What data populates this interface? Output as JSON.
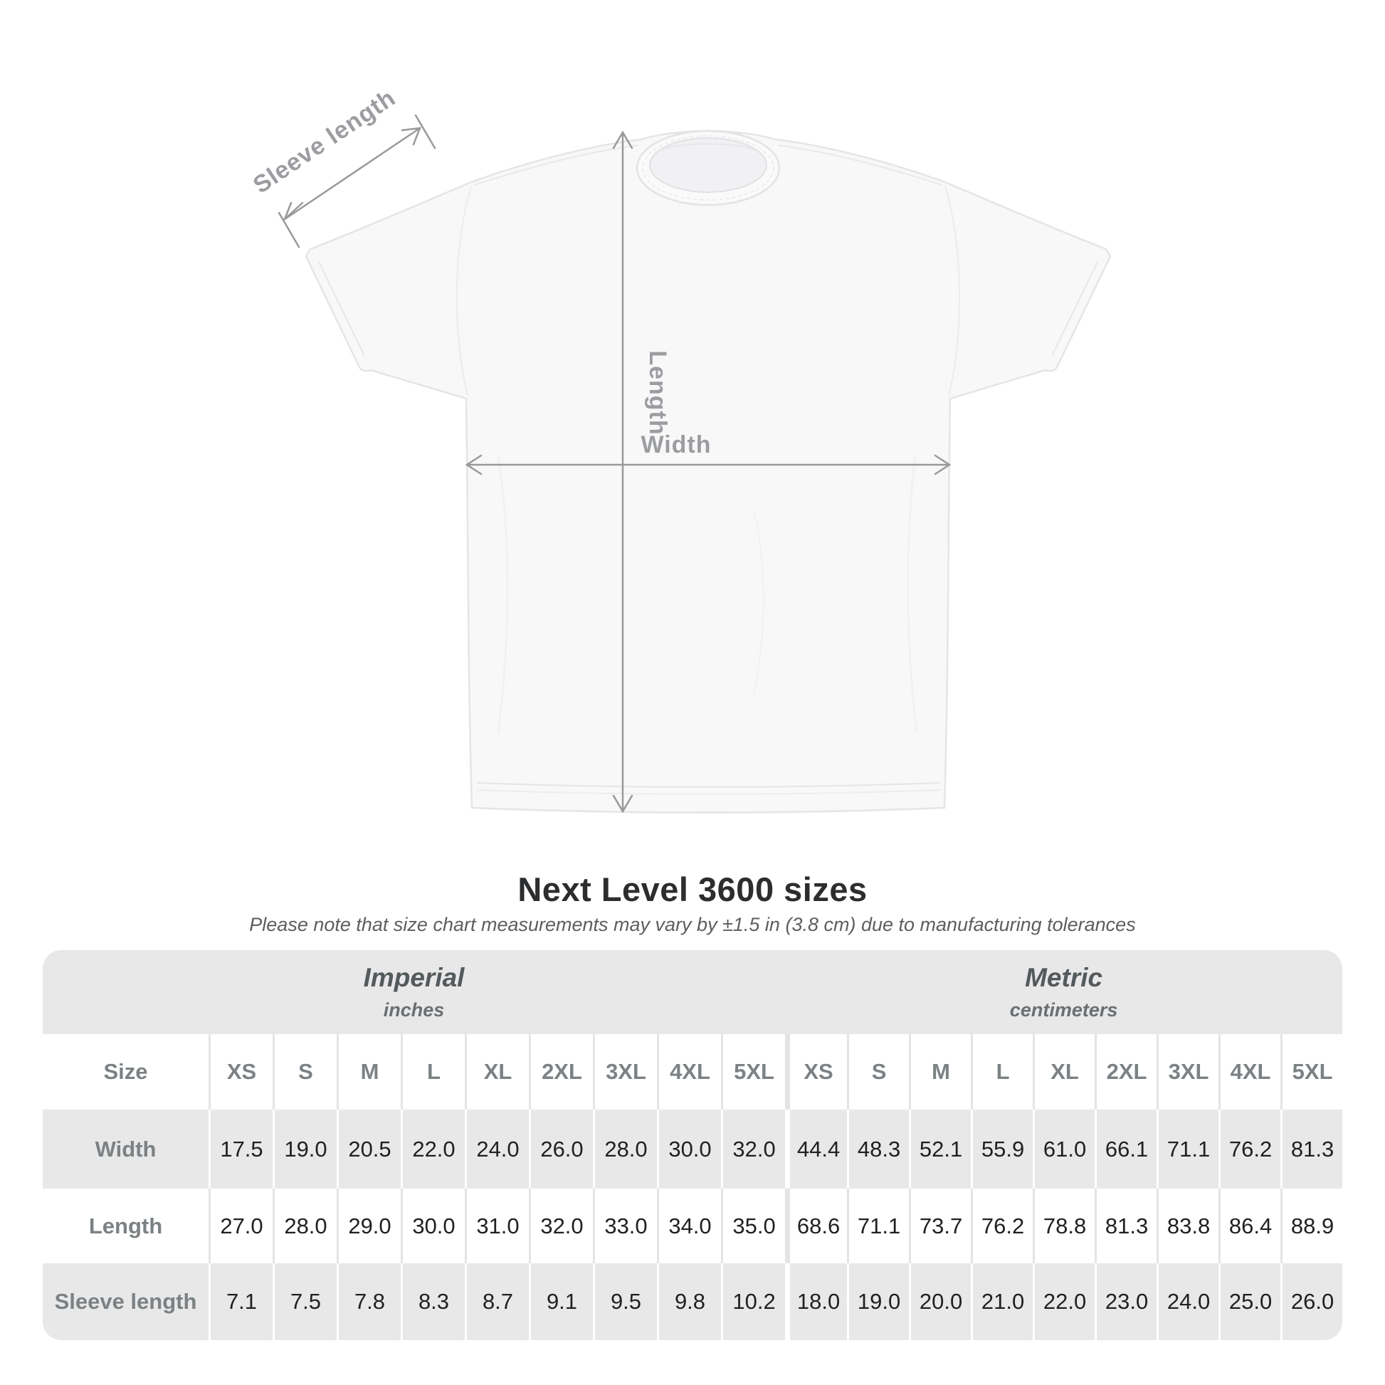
{
  "diagram": {
    "labels": {
      "sleeve_length": "Sleeve length",
      "length": "Length",
      "width": "Width"
    }
  },
  "title": "Next Level 3600 sizes",
  "note": "Please note that size chart measurements may vary by ±1.5 in (3.8 cm) due to manufacturing tolerances",
  "size_chart": {
    "unit_groups": [
      {
        "label": "Imperial",
        "sublabel": "inches"
      },
      {
        "label": "Metric",
        "sublabel": "centimeters"
      }
    ],
    "size_col_header": "Size",
    "sizes": [
      "XS",
      "S",
      "M",
      "L",
      "XL",
      "2XL",
      "3XL",
      "4XL",
      "5XL"
    ],
    "rows": [
      {
        "label": "Width",
        "imperial": [
          "17.5",
          "19.0",
          "20.5",
          "22.0",
          "24.0",
          "26.0",
          "28.0",
          "30.0",
          "32.0"
        ],
        "metric": [
          "44.4",
          "48.3",
          "52.1",
          "55.9",
          "61.0",
          "66.1",
          "71.1",
          "76.2",
          "81.3"
        ]
      },
      {
        "label": "Length",
        "imperial": [
          "27.0",
          "28.0",
          "29.0",
          "30.0",
          "31.0",
          "32.0",
          "33.0",
          "34.0",
          "35.0"
        ],
        "metric": [
          "68.6",
          "71.1",
          "73.7",
          "76.2",
          "78.8",
          "81.3",
          "83.8",
          "86.4",
          "88.9"
        ]
      },
      {
        "label": "Sleeve length",
        "imperial": [
          "7.1",
          "7.5",
          "7.8",
          "8.3",
          "8.7",
          "9.1",
          "9.5",
          "9.8",
          "10.2"
        ],
        "metric": [
          "18.0",
          "19.0",
          "20.0",
          "21.0",
          "22.0",
          "23.0",
          "24.0",
          "25.0",
          "26.0"
        ]
      }
    ]
  },
  "colors": {
    "table_band_gray": "#e8e8e9",
    "separator_light": "#e3e4e5",
    "number_text": "#1f2022",
    "label_gray": "#7c8184",
    "measure_line": "#97999b",
    "diagram_label": "#9b9da0",
    "title_text": "#2c2d2e",
    "shirt_fill": "#f8f8f9",
    "shirt_outline": "#e4e5e6"
  }
}
